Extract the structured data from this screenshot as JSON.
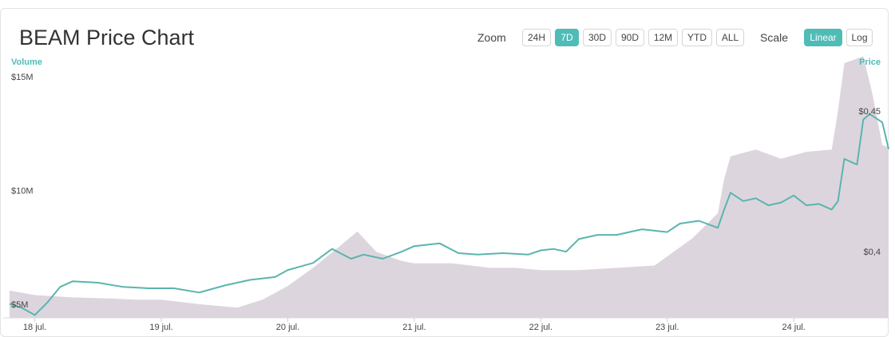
{
  "header": {
    "title": "BEAM Price Chart",
    "zoom_label": "Zoom",
    "scale_label": "Scale",
    "zoom_options": [
      "24H",
      "7D",
      "30D",
      "90D",
      "12M",
      "YTD",
      "ALL"
    ],
    "zoom_selected": "7D",
    "scale_options": [
      "Linear",
      "Log"
    ],
    "scale_selected": "Linear"
  },
  "colors": {
    "accent": "#4fbcb6",
    "price_line": "#5ab5ae",
    "volume_fill": "#ddd5de",
    "grid": "#eeeeee"
  },
  "chart_data": {
    "type": "line",
    "title": "BEAM Price Chart",
    "left_axis_label": "Volume",
    "right_axis_label": "Price",
    "x_tick_labels": [
      "18 jul.",
      "19 jul.",
      "20 jul.",
      "21 jul.",
      "22 jul.",
      "23 jul.",
      "24 jul."
    ],
    "y_left_ticks": [
      "$5M",
      "$10M",
      "$15M"
    ],
    "y_right_ticks": [
      "$0,4",
      "$0,45"
    ],
    "volume_ylim": [
      4.4,
      16.2
    ],
    "price_ylim": [
      0.3765,
      0.4719
    ],
    "grid": false,
    "legend": "none",
    "series": [
      {
        "name": "Volume",
        "unit": "USD millions",
        "x": [
          17.8,
          18.0,
          18.3,
          18.6,
          18.8,
          19.0,
          19.3,
          19.6,
          19.8,
          20.0,
          20.2,
          20.4,
          20.55,
          20.7,
          20.9,
          21.0,
          21.3,
          21.6,
          21.8,
          22.0,
          22.3,
          22.6,
          22.9,
          23.2,
          23.4,
          23.45,
          23.5,
          23.7,
          23.9,
          24.1,
          24.3,
          24.35,
          24.4,
          24.55,
          24.62,
          24.7,
          24.75
        ],
        "y": [
          5.6,
          5.4,
          5.3,
          5.25,
          5.2,
          5.2,
          5.0,
          4.85,
          5.2,
          5.8,
          6.6,
          7.5,
          8.2,
          7.3,
          6.9,
          6.8,
          6.8,
          6.6,
          6.6,
          6.5,
          6.5,
          6.6,
          6.7,
          7.9,
          9.0,
          10.5,
          11.5,
          11.8,
          11.4,
          11.7,
          11.8,
          13.5,
          15.6,
          15.9,
          14.3,
          12.0,
          11.9
        ]
      },
      {
        "name": "Price",
        "unit": "USD",
        "x": [
          17.8,
          17.9,
          18.0,
          18.1,
          18.2,
          18.3,
          18.5,
          18.7,
          18.9,
          19.1,
          19.3,
          19.5,
          19.7,
          19.9,
          20.0,
          20.2,
          20.35,
          20.5,
          20.6,
          20.75,
          20.9,
          21.0,
          21.2,
          21.35,
          21.5,
          21.7,
          21.9,
          22.0,
          22.1,
          22.2,
          22.3,
          22.45,
          22.6,
          22.8,
          23.0,
          23.1,
          23.25,
          23.4,
          23.45,
          23.5,
          23.6,
          23.7,
          23.8,
          23.9,
          24.0,
          24.1,
          24.2,
          24.3,
          24.35,
          24.4,
          24.5,
          24.55,
          24.6,
          24.7,
          24.75
        ],
        "y": [
          0.3815,
          0.38,
          0.3775,
          0.382,
          0.3875,
          0.3895,
          0.389,
          0.3875,
          0.387,
          0.387,
          0.3855,
          0.388,
          0.39,
          0.391,
          0.3935,
          0.396,
          0.401,
          0.3975,
          0.399,
          0.3975,
          0.4,
          0.402,
          0.403,
          0.3995,
          0.399,
          0.3995,
          0.399,
          0.4005,
          0.401,
          0.4,
          0.4045,
          0.406,
          0.406,
          0.408,
          0.407,
          0.41,
          0.411,
          0.4085,
          0.415,
          0.421,
          0.418,
          0.419,
          0.4165,
          0.4175,
          0.42,
          0.4165,
          0.417,
          0.415,
          0.418,
          0.433,
          0.431,
          0.447,
          0.449,
          0.446,
          0.4365
        ]
      }
    ]
  }
}
